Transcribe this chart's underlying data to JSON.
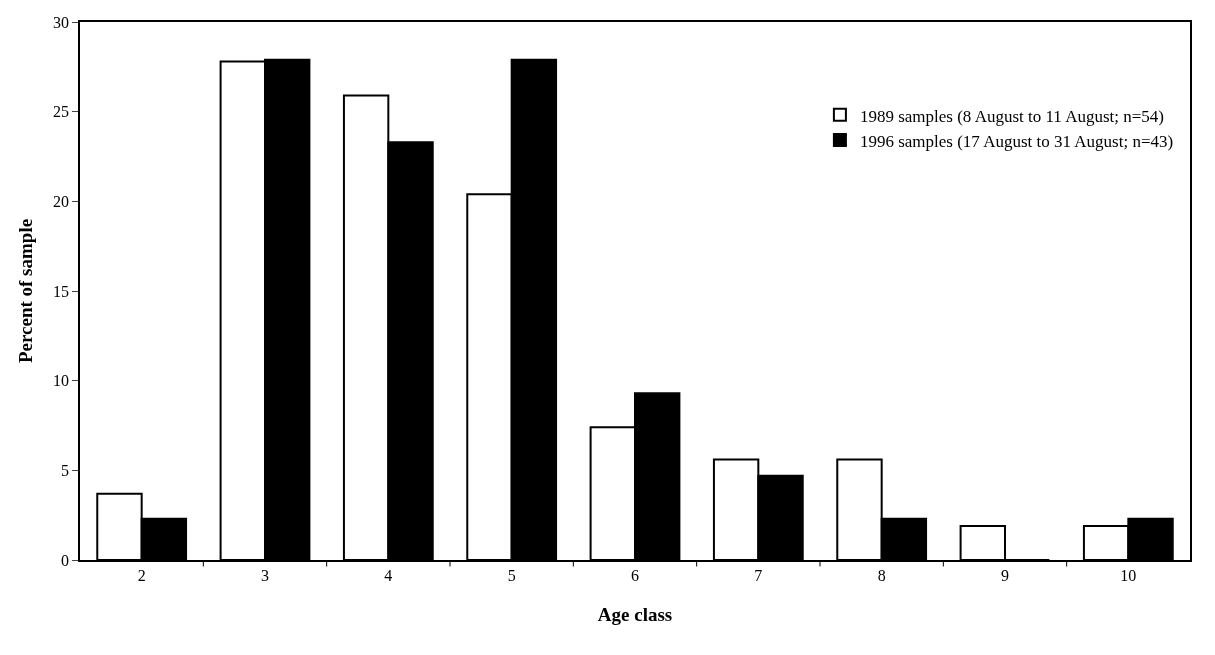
{
  "chart_data": {
    "type": "bar",
    "xlabel": "Age class",
    "ylabel": "Percent of sample",
    "categories": [
      "2",
      "3",
      "4",
      "5",
      "6",
      "7",
      "8",
      "9",
      "10"
    ],
    "series": [
      {
        "name": "1989 samples (8 August to 11 August; n=54)",
        "color": "#ffffff",
        "values": [
          3.7,
          27.8,
          25.9,
          20.4,
          7.4,
          5.6,
          5.6,
          1.9,
          1.9
        ]
      },
      {
        "name": "1996 samples (17 August to 31 August; n=43)",
        "color": "#000000",
        "values": [
          2.3,
          27.9,
          23.3,
          27.9,
          9.3,
          4.7,
          2.3,
          0,
          2.3
        ]
      }
    ],
    "ylim": [
      0,
      30
    ],
    "yticks": [
      0,
      5,
      10,
      15,
      20,
      25,
      30
    ],
    "grid": false,
    "legend": "top right"
  }
}
